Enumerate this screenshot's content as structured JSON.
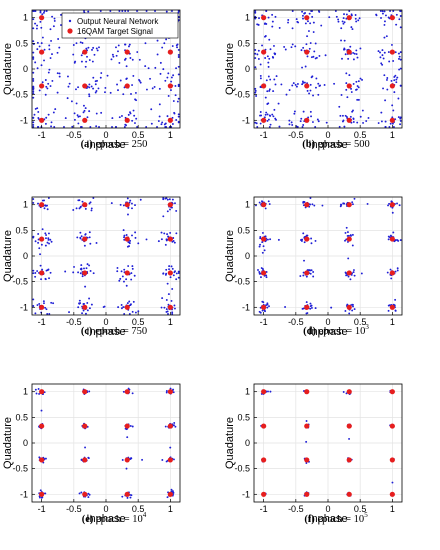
{
  "chart_data": [
    {
      "id": "a",
      "type": "scatter",
      "caption_tag": "(a)",
      "caption_text": "epoch = 250",
      "caption_sup": "",
      "xlabel": "Inphase",
      "ylabel": "Quadature",
      "xlim": [
        -1.15,
        1.15
      ],
      "ylim": [
        -1.15,
        1.15
      ],
      "xticks": [
        -1,
        -0.5,
        0,
        0.5,
        1
      ],
      "yticks": [
        -1,
        -0.5,
        0,
        0.5,
        1
      ],
      "xtick_labels": [
        "-1",
        "-0.5",
        "0",
        "0.5",
        "1"
      ],
      "ytick_labels": [
        "-1",
        "-0.5",
        "0",
        "0.5",
        "1"
      ],
      "grid": true,
      "spread": 0.17,
      "points_per_cluster": 22,
      "bridge_points": 30,
      "legend": {
        "placement": "top",
        "entries": [
          {
            "label": "Output Neural Network",
            "color": "#1f1fd6"
          },
          {
            "label": "16QAM Target Signal",
            "color": "#e61e1e"
          }
        ]
      },
      "series": [
        {
          "name": "Output Neural Network",
          "color": "#1f1fd6"
        },
        {
          "name": "16QAM Target Signal",
          "color": "#e61e1e",
          "x": [
            -1,
            -1,
            -1,
            -1,
            -0.33,
            -0.33,
            -0.33,
            -0.33,
            0.33,
            0.33,
            0.33,
            0.33,
            1,
            1,
            1,
            1
          ],
          "y": [
            -1,
            -0.33,
            0.33,
            1,
            -1,
            -0.33,
            0.33,
            1,
            -1,
            -0.33,
            0.33,
            1,
            -1,
            -0.33,
            0.33,
            1
          ]
        }
      ]
    },
    {
      "id": "b",
      "type": "scatter",
      "caption_tag": "(b)",
      "caption_text": "epoch = 500",
      "caption_sup": "",
      "xlabel": "Inphase",
      "ylabel": "Quadature",
      "xlim": [
        -1.15,
        1.15
      ],
      "ylim": [
        -1.15,
        1.15
      ],
      "xticks": [
        -1,
        -0.5,
        0,
        0.5,
        1
      ],
      "yticks": [
        -1,
        -0.5,
        0,
        0.5,
        1
      ],
      "xtick_labels": [
        "-1",
        "-0.5",
        "0",
        "0.5",
        "1"
      ],
      "ytick_labels": [
        "-1",
        "-0.5",
        "0",
        "0.5",
        "1"
      ],
      "grid": true,
      "spread": 0.13,
      "points_per_cluster": 22,
      "bridge_points": 30,
      "series": [
        {
          "name": "Output Neural Network",
          "color": "#1f1fd6"
        },
        {
          "name": "16QAM Target Signal",
          "color": "#e61e1e",
          "x": [
            -1,
            -1,
            -1,
            -1,
            -0.33,
            -0.33,
            -0.33,
            -0.33,
            0.33,
            0.33,
            0.33,
            0.33,
            1,
            1,
            1,
            1
          ],
          "y": [
            -1,
            -0.33,
            0.33,
            1,
            -1,
            -0.33,
            0.33,
            1,
            -1,
            -0.33,
            0.33,
            1,
            -1,
            -0.33,
            0.33,
            1
          ]
        }
      ]
    },
    {
      "id": "c",
      "type": "scatter",
      "caption_tag": "(c)",
      "caption_text": "epoch = 750",
      "caption_sup": "",
      "xlabel": "Inphase",
      "ylabel": "Quadature",
      "xlim": [
        -1.15,
        1.15
      ],
      "ylim": [
        -1.15,
        1.15
      ],
      "xticks": [
        -1,
        -0.5,
        0,
        0.5,
        1
      ],
      "yticks": [
        -1,
        -0.5,
        0,
        0.5,
        1
      ],
      "xtick_labels": [
        "-1",
        "-0.5",
        "0",
        "0.5",
        "1"
      ],
      "ytick_labels": [
        "-1",
        "-0.5",
        "0",
        "0.5",
        "1"
      ],
      "grid": true,
      "spread": 0.08,
      "points_per_cluster": 18,
      "bridge_points": 24,
      "series": [
        {
          "name": "Output Neural Network",
          "color": "#1f1fd6"
        },
        {
          "name": "16QAM Target Signal",
          "color": "#e61e1e",
          "x": [
            -1,
            -1,
            -1,
            -1,
            -0.33,
            -0.33,
            -0.33,
            -0.33,
            0.33,
            0.33,
            0.33,
            0.33,
            1,
            1,
            1,
            1
          ],
          "y": [
            -1,
            -0.33,
            0.33,
            1,
            -1,
            -0.33,
            0.33,
            1,
            -1,
            -0.33,
            0.33,
            1,
            -1,
            -0.33,
            0.33,
            1
          ]
        }
      ]
    },
    {
      "id": "d",
      "type": "scatter",
      "caption_tag": "(d)",
      "caption_text": "epoch = 10",
      "caption_sup": "3",
      "xlabel": "Inphase",
      "ylabel": "Quadature",
      "xlim": [
        -1.15,
        1.15
      ],
      "ylim": [
        -1.15,
        1.15
      ],
      "xticks": [
        -1,
        -0.5,
        0,
        0.5,
        1
      ],
      "yticks": [
        -1,
        -0.5,
        0,
        0.5,
        1
      ],
      "xtick_labels": [
        "-1",
        "-0.5",
        "0",
        "0.5",
        "1"
      ],
      "ytick_labels": [
        "-1",
        "-0.5",
        "0",
        "0.5",
        "1"
      ],
      "grid": true,
      "spread": 0.05,
      "points_per_cluster": 16,
      "bridge_points": 20,
      "series": [
        {
          "name": "Output Neural Network",
          "color": "#1f1fd6"
        },
        {
          "name": "16QAM Target Signal",
          "color": "#e61e1e",
          "x": [
            -1,
            -1,
            -1,
            -1,
            -0.33,
            -0.33,
            -0.33,
            -0.33,
            0.33,
            0.33,
            0.33,
            0.33,
            1,
            1,
            1,
            1
          ],
          "y": [
            -1,
            -0.33,
            0.33,
            1,
            -1,
            -0.33,
            0.33,
            1,
            -1,
            -0.33,
            0.33,
            1,
            -1,
            -0.33,
            0.33,
            1
          ]
        }
      ]
    },
    {
      "id": "e",
      "type": "scatter",
      "caption_tag": "(e)",
      "caption_text": "epoch = 10",
      "caption_sup": "4",
      "xlabel": "Inphase",
      "ylabel": "Quadature",
      "xlim": [
        -1.15,
        1.15
      ],
      "ylim": [
        -1.15,
        1.15
      ],
      "xticks": [
        -1,
        -0.5,
        0,
        0.5,
        1
      ],
      "yticks": [
        -1,
        -0.5,
        0,
        0.5,
        1
      ],
      "xtick_labels": [
        "-1",
        "-0.5",
        "0",
        "0.5",
        "1"
      ],
      "ytick_labels": [
        "-1",
        "-0.5",
        "0",
        "0.5",
        "1"
      ],
      "grid": true,
      "spread": 0.03,
      "points_per_cluster": 12,
      "bridge_points": 14,
      "series": [
        {
          "name": "Output Neural Network",
          "color": "#1f1fd6"
        },
        {
          "name": "16QAM Target Signal",
          "color": "#e61e1e",
          "x": [
            -1,
            -1,
            -1,
            -1,
            -0.33,
            -0.33,
            -0.33,
            -0.33,
            0.33,
            0.33,
            0.33,
            0.33,
            1,
            1,
            1,
            1
          ],
          "y": [
            -1,
            -0.33,
            0.33,
            1,
            -1,
            -0.33,
            0.33,
            1,
            -1,
            -0.33,
            0.33,
            1,
            -1,
            -0.33,
            0.33,
            1
          ]
        }
      ]
    },
    {
      "id": "f",
      "type": "scatter",
      "caption_tag": "(f)",
      "caption_text": "epoch = 10",
      "caption_sup": "5",
      "xlabel": "Inphase",
      "ylabel": "Quadature",
      "xlim": [
        -1.15,
        1.15
      ],
      "ylim": [
        -1.15,
        1.15
      ],
      "xticks": [
        -1,
        -0.5,
        0,
        0.5,
        1
      ],
      "yticks": [
        -1,
        -0.5,
        0,
        0.5,
        1
      ],
      "xtick_labels": [
        "-1",
        "-0.5",
        "0",
        "0.5",
        "1"
      ],
      "ytick_labels": [
        "-1",
        "-0.5",
        "0",
        "0.5",
        "1"
      ],
      "grid": true,
      "spread": 0.018,
      "points_per_cluster": 9,
      "bridge_points": 8,
      "series": [
        {
          "name": "Output Neural Network",
          "color": "#1f1fd6"
        },
        {
          "name": "16QAM Target Signal",
          "color": "#e61e1e",
          "x": [
            -1,
            -1,
            -1,
            -1,
            -0.33,
            -0.33,
            -0.33,
            -0.33,
            0.33,
            0.33,
            0.33,
            0.33,
            1,
            1,
            1,
            1
          ],
          "y": [
            -1,
            -0.33,
            0.33,
            1,
            -1,
            -0.33,
            0.33,
            1,
            -1,
            -0.33,
            0.33,
            1,
            -1,
            -0.33,
            0.33,
            1
          ]
        }
      ]
    }
  ]
}
